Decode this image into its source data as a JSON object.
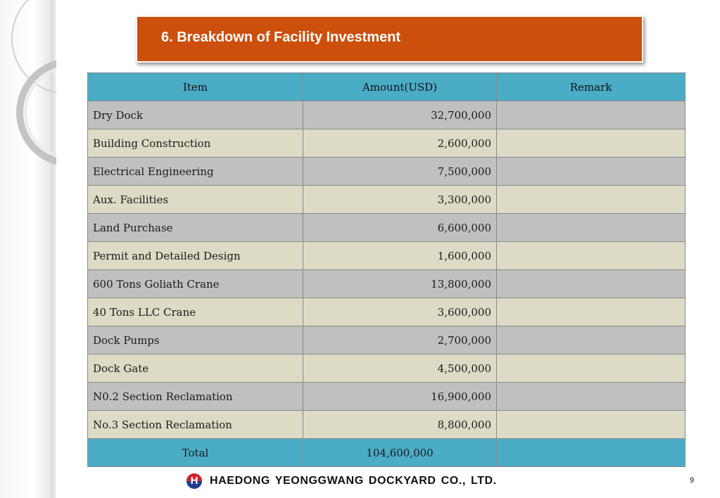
{
  "title": "6. Breakdown of Facility Investment",
  "table": {
    "headers": [
      "Item",
      "Amount(USD)",
      "Remark"
    ],
    "rows": [
      {
        "item": "Dry Dock",
        "amount": "32,700,000",
        "remark": ""
      },
      {
        "item": "Building Construction",
        "amount": "2,600,000",
        "remark": ""
      },
      {
        "item": "Electrical Engineering",
        "amount": "7,500,000",
        "remark": ""
      },
      {
        "item": "Aux. Facilities",
        "amount": "3,300,000",
        "remark": ""
      },
      {
        "item": "Land Purchase",
        "amount": "6,600,000",
        "remark": ""
      },
      {
        "item": "Permit and Detailed Design",
        "amount": "1,600,000",
        "remark": ""
      },
      {
        "item": "600 Tons Goliath Crane",
        "amount": "13,800,000",
        "remark": ""
      },
      {
        "item": "40 Tons LLC Crane",
        "amount": "3,600,000",
        "remark": ""
      },
      {
        "item": "Dock Pumps",
        "amount": "2,700,000",
        "remark": ""
      },
      {
        "item": "Dock Gate",
        "amount": "4,500,000",
        "remark": ""
      },
      {
        "item": "N0.2 Section Reclamation",
        "amount": "16,900,000",
        "remark": ""
      },
      {
        "item": "No.3 Section Reclamation",
        "amount": "8,800,000",
        "remark": ""
      }
    ],
    "total": {
      "label": "Total",
      "amount": "104,600,000",
      "remark": ""
    }
  },
  "footer": {
    "company": "HAEDONG YEONGGWANG DOCKYARD CO., LTD.",
    "logo_letter": "H",
    "page_number": "9"
  },
  "colors": {
    "title_bg": "#cc4f0c",
    "header_bg": "#4bacc6",
    "row_gray": "#c0c0c0",
    "row_beige": "#dddac6"
  }
}
